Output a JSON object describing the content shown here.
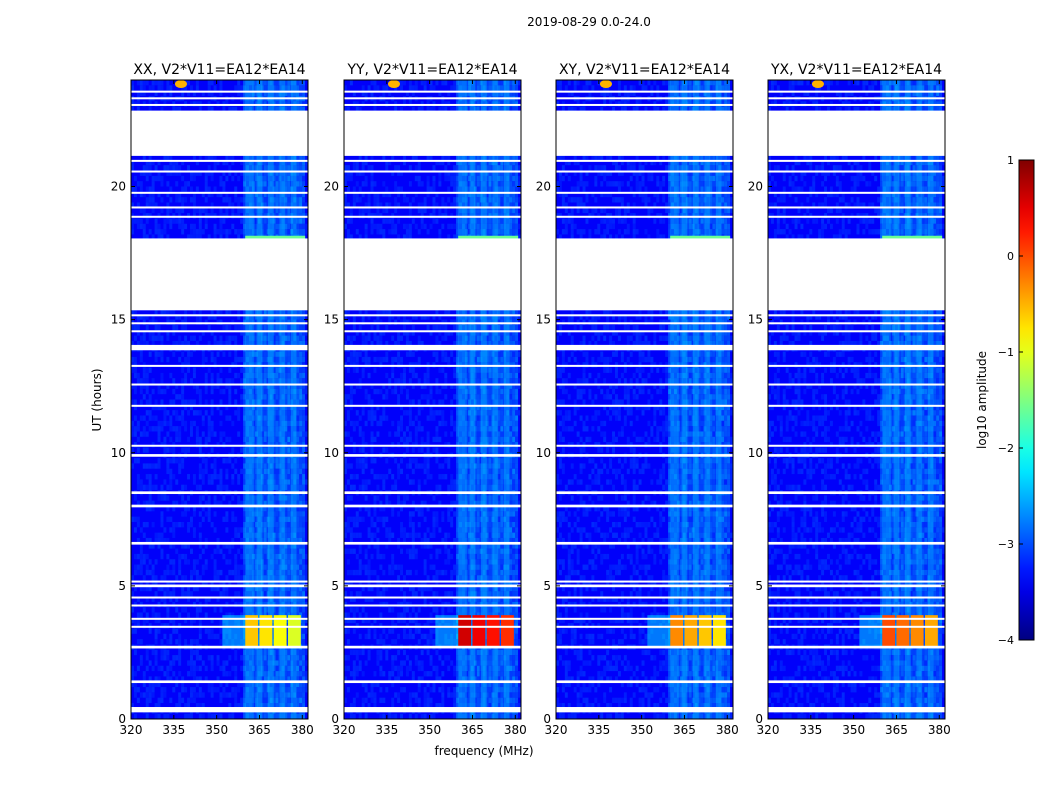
{
  "figure_title": "2019-08-29 0.0-24.0",
  "chart_data": {
    "type": "heatmap",
    "title": "2019-08-29 0.0-24.0",
    "xlabel": "frequency (MHz)",
    "ylabel": "UT (hours)",
    "xlim": [
      320,
      382
    ],
    "ylim": [
      0,
      24
    ],
    "xticks": [
      320,
      335,
      350,
      365,
      380
    ],
    "yticks": [
      0,
      5,
      10,
      15,
      20
    ],
    "panels": [
      {
        "title": "XX, V2*V11=EA12*EA14",
        "rfi_peak_log10": -0.6
      },
      {
        "title": "YY, V2*V11=EA12*EA14",
        "rfi_peak_log10": 0.6
      },
      {
        "title": "XY, V2*V11=EA12*EA14",
        "rfi_peak_log10": -0.3
      },
      {
        "title": "YX, V2*V11=EA12*EA14",
        "rfi_peak_log10": 0.0
      }
    ],
    "data_gaps_ut_hours": [
      [
        21.15,
        22.85
      ],
      [
        15.35,
        18.05
      ],
      [
        0.25,
        0.45
      ],
      [
        1.35,
        1.45
      ],
      [
        2.65,
        2.75
      ],
      [
        3.45,
        3.5
      ],
      [
        3.75,
        3.8
      ],
      [
        4.25,
        4.3
      ],
      [
        4.55,
        4.6
      ],
      [
        4.95,
        5.05
      ],
      [
        5.15,
        5.2
      ],
      [
        6.55,
        6.65
      ],
      [
        7.95,
        8.05
      ],
      [
        8.45,
        8.55
      ],
      [
        9.85,
        9.95
      ],
      [
        10.25,
        10.3
      ],
      [
        11.75,
        11.8
      ],
      [
        12.55,
        12.6
      ],
      [
        13.25,
        13.3
      ],
      [
        13.85,
        14.05
      ],
      [
        14.55,
        14.6
      ],
      [
        14.85,
        14.9
      ],
      [
        15.15,
        15.2
      ],
      [
        18.85,
        18.9
      ],
      [
        19.2,
        19.25
      ],
      [
        19.75,
        19.8
      ],
      [
        20.55,
        20.6
      ],
      [
        20.95,
        21.0
      ],
      [
        23.05,
        23.1
      ],
      [
        23.3,
        23.35
      ],
      [
        23.55,
        23.6
      ]
    ],
    "colorbar": {
      "label": "log10 amplitude",
      "min": -4,
      "max": 1,
      "ticks": [
        1,
        0,
        -1,
        -2,
        -3,
        -4
      ],
      "tick_labels": [
        "1",
        "0",
        "−1",
        "−2",
        "−3",
        "−4"
      ]
    }
  }
}
